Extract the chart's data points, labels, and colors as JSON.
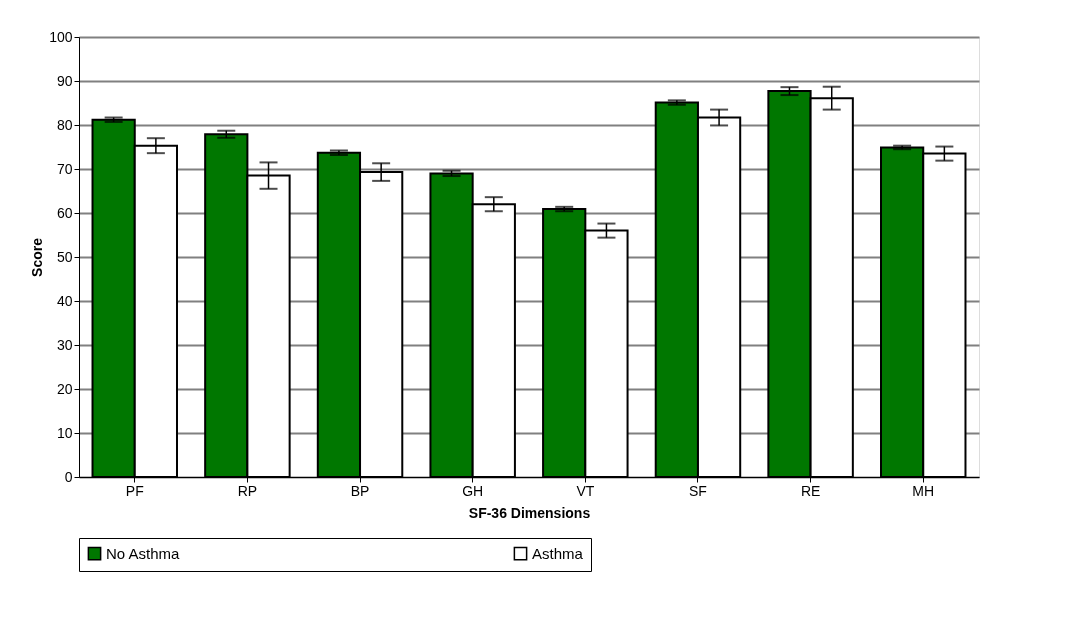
{
  "chart_data": {
    "type": "bar",
    "xlabel": "SF-36 Dimensions",
    "ylabel": "Score",
    "categories": [
      "PF",
      "RP",
      "BP",
      "GH",
      "VT",
      "SF",
      "RE",
      "MH"
    ],
    "series": [
      {
        "name": "No Asthma",
        "color": "#007700",
        "values": [
          81.2,
          77.9,
          73.7,
          69.0,
          60.9,
          85.1,
          87.7,
          74.9
        ],
        "errors": [
          0.5,
          0.8,
          0.5,
          0.6,
          0.5,
          0.5,
          0.9,
          0.4
        ]
      },
      {
        "name": "Asthma",
        "color": "#ffffff",
        "values": [
          75.3,
          68.5,
          69.3,
          62.0,
          56.0,
          81.7,
          86.1,
          73.5
        ],
        "errors": [
          1.7,
          3.0,
          2.0,
          1.6,
          1.6,
          1.8,
          2.6,
          1.6
        ]
      }
    ],
    "ylim": [
      0,
      100
    ],
    "yticks": [
      0,
      10,
      20,
      30,
      40,
      50,
      60,
      70,
      80,
      90,
      100
    ],
    "grid": "y",
    "legend": "bottom"
  }
}
